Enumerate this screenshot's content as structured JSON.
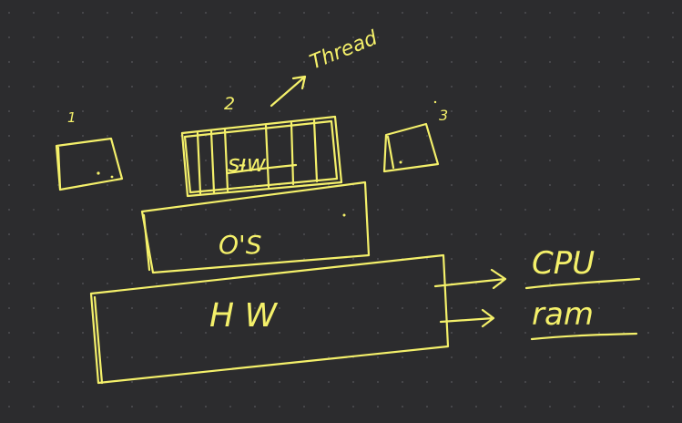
{
  "board": {
    "background": "#2c2c2e",
    "dot_color": "#4a4a4d",
    "ink_color": "#f4f06a"
  },
  "labels": {
    "box_1": "1",
    "box_2": "2",
    "box_3": "3",
    "thread": "Thread",
    "software": "sı̵w",
    "os": "O'S",
    "hardware": "H W",
    "cpu": "CPU",
    "ram": "ram"
  }
}
